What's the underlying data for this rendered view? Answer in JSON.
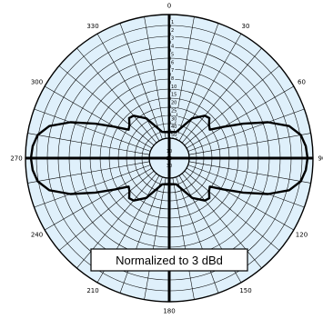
{
  "chart_data": {
    "type": "polar",
    "grid": true,
    "background": "#dff0fb",
    "grid_color": "#000000",
    "angle_labels": [
      "0",
      "30",
      "60",
      "90",
      "120",
      "150",
      "180",
      "210",
      "240",
      "270",
      "300",
      "330"
    ],
    "angle_values": [
      0,
      30,
      60,
      90,
      120,
      150,
      180,
      210,
      240,
      270,
      300,
      330
    ],
    "radial_tick_labels": [
      "1",
      "2",
      "3",
      "4",
      "5",
      "6",
      "7",
      "8",
      "10",
      "15",
      "20",
      "25",
      "30",
      "40",
      "50"
    ],
    "annotation": "Normalized to 3 dBd",
    "series": [
      {
        "color": "#000000",
        "points": [
          [
            0,
            0.05
          ],
          [
            15,
            0.06
          ],
          [
            30,
            0.22
          ],
          [
            40,
            0.3
          ],
          [
            45,
            0.31
          ],
          [
            50,
            0.27
          ],
          [
            55,
            0.25
          ],
          [
            60,
            0.36
          ],
          [
            65,
            0.52
          ],
          [
            70,
            0.72
          ],
          [
            75,
            0.88
          ],
          [
            80,
            0.96
          ],
          [
            85,
            0.99
          ],
          [
            90,
            1.0
          ],
          [
            95,
            0.99
          ],
          [
            100,
            0.96
          ],
          [
            105,
            0.88
          ],
          [
            110,
            0.72
          ],
          [
            115,
            0.52
          ],
          [
            120,
            0.36
          ],
          [
            125,
            0.25
          ],
          [
            130,
            0.27
          ],
          [
            135,
            0.31
          ],
          [
            140,
            0.3
          ],
          [
            150,
            0.22
          ],
          [
            165,
            0.06
          ],
          [
            180,
            0.05
          ],
          [
            195,
            0.06
          ],
          [
            210,
            0.22
          ],
          [
            220,
            0.3
          ],
          [
            225,
            0.31
          ],
          [
            230,
            0.27
          ],
          [
            235,
            0.25
          ],
          [
            240,
            0.36
          ],
          [
            245,
            0.52
          ],
          [
            250,
            0.72
          ],
          [
            255,
            0.88
          ],
          [
            260,
            0.96
          ],
          [
            265,
            0.99
          ],
          [
            270,
            1.0
          ],
          [
            275,
            0.99
          ],
          [
            280,
            0.96
          ],
          [
            285,
            0.88
          ],
          [
            290,
            0.72
          ],
          [
            295,
            0.52
          ],
          [
            300,
            0.36
          ],
          [
            305,
            0.25
          ],
          [
            310,
            0.27
          ],
          [
            315,
            0.31
          ],
          [
            320,
            0.3
          ],
          [
            330,
            0.22
          ],
          [
            345,
            0.06
          ],
          [
            360,
            0.05
          ]
        ]
      }
    ]
  }
}
